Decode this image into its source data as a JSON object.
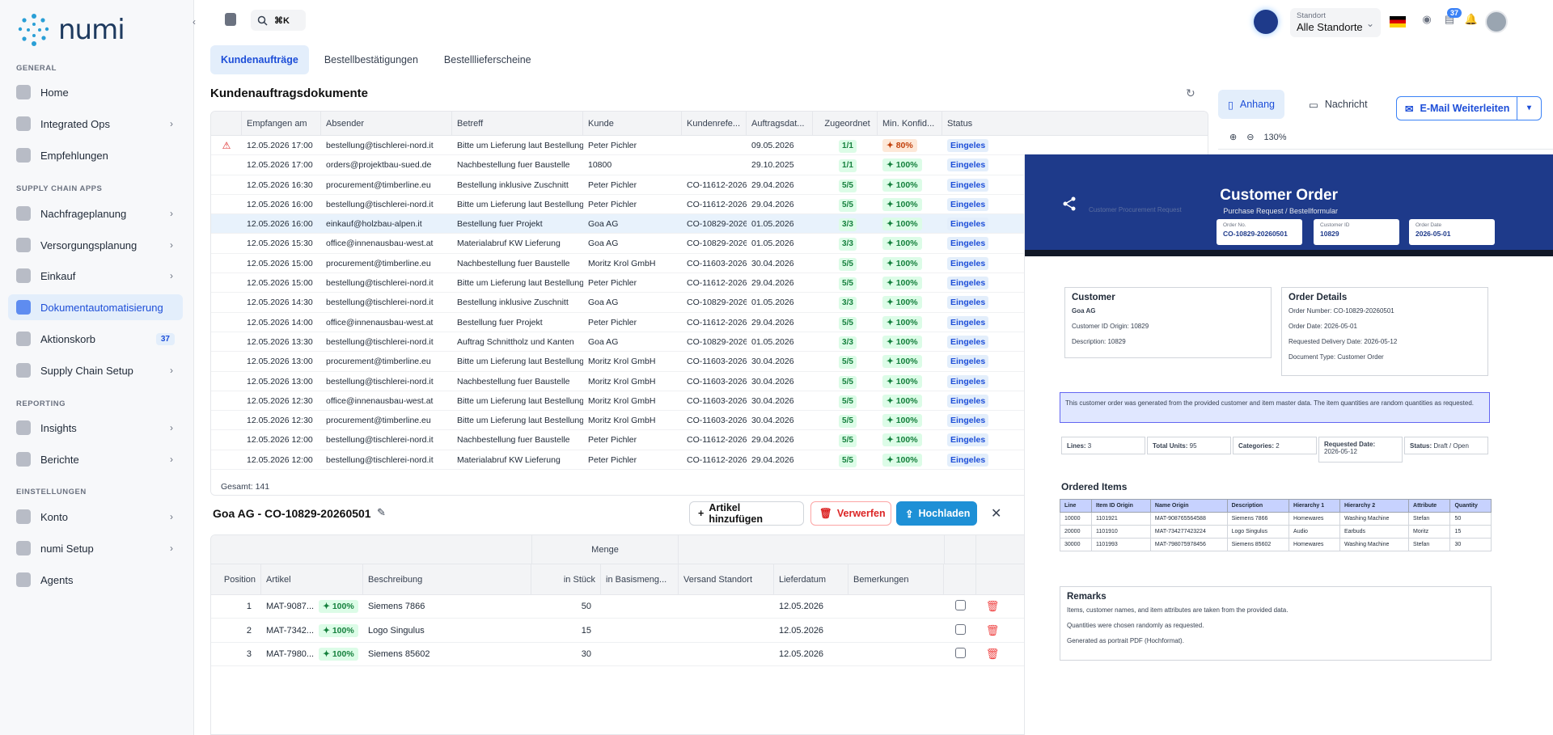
{
  "brand": {
    "name": "numi"
  },
  "sidebar": {
    "sections": {
      "general": "GENERAL",
      "supply": "SUPPLY CHAIN APPS",
      "reporting": "REPORTING",
      "settings": "EINSTELLUNGEN"
    },
    "items": [
      {
        "label": "Home",
        "icon": "home-icon"
      },
      {
        "label": "Integrated Ops",
        "icon": "ops-icon"
      },
      {
        "label": "Empfehlungen",
        "icon": "sparkle-icon"
      },
      {
        "label": "Nachfrageplanung",
        "icon": "chart-icon"
      },
      {
        "label": "Versorgungsplanung",
        "icon": "truck-icon"
      },
      {
        "label": "Einkauf",
        "icon": "dollar-icon"
      },
      {
        "label": "Dokumentautomatisierung",
        "icon": "document-icon"
      },
      {
        "label": "Aktionskorb",
        "icon": "basket-icon",
        "count": "37"
      },
      {
        "label": "Supply Chain Setup",
        "icon": "globe-icon"
      },
      {
        "label": "Insights",
        "icon": "insights-icon"
      },
      {
        "label": "Berichte",
        "icon": "reports-icon"
      },
      {
        "label": "Konto",
        "icon": "user-icon"
      },
      {
        "label": "numi Setup",
        "icon": "gear-icon"
      },
      {
        "label": "Agents",
        "icon": "terminal-icon"
      }
    ]
  },
  "topbar": {
    "shortcut": "⌘K",
    "standort_label": "Standort",
    "standort_value": "Alle Standorte",
    "notification_count": "37"
  },
  "tabs": [
    "Kundenaufträge",
    "Bestellbestätigungen",
    "Bestelllieferscheine"
  ],
  "section_title": "Kundenauftragsdokumente",
  "table": {
    "columns": [
      "Empfangen am",
      "Absender",
      "Betreff",
      "Kunde",
      "Kundenrefe...",
      "Auftragsdat...",
      "Zugeordnet",
      "Min. Konfid...",
      "Status"
    ],
    "rows": [
      {
        "warn": "⚠",
        "date": "12.05.2026 17:00",
        "from": "bestellung@tischlerei-nord.it",
        "subject": "Bitte um Lieferung laut Bestellung",
        "customer": "Peter Pichler",
        "ref": "",
        "odate": "09.05.2026",
        "assigned": "1/1",
        "conf": "80%",
        "status": "Eingeles"
      },
      {
        "warn": "",
        "date": "12.05.2026 17:00",
        "from": "orders@projektbau-sued.de",
        "subject": "Nachbestellung fuer Baustelle",
        "customer": "10800",
        "ref": "",
        "odate": "29.10.2025",
        "assigned": "1/1",
        "conf": "100%",
        "status": "Eingeles"
      },
      {
        "warn": "",
        "date": "12.05.2026 16:30",
        "from": "procurement@timberline.eu",
        "subject": "Bestellung inklusive Zuschnitt",
        "customer": "Peter Pichler",
        "ref": "CO-11612-2026",
        "odate": "29.04.2026",
        "assigned": "5/5",
        "conf": "100%",
        "status": "Eingeles"
      },
      {
        "warn": "",
        "date": "12.05.2026 16:00",
        "from": "bestellung@tischlerei-nord.it",
        "subject": "Bitte um Lieferung laut Bestellung",
        "customer": "Peter Pichler",
        "ref": "CO-11612-2026",
        "odate": "29.04.2026",
        "assigned": "5/5",
        "conf": "100%",
        "status": "Eingeles"
      },
      {
        "warn": "",
        "date": "12.05.2026 16:00",
        "from": "einkauf@holzbau-alpen.it",
        "subject": "Bestellung fuer Projekt",
        "customer": "Goa AG",
        "ref": "CO-10829-2026",
        "odate": "01.05.2026",
        "assigned": "3/3",
        "conf": "100%",
        "status": "Eingeles",
        "sel": true
      },
      {
        "warn": "",
        "date": "12.05.2026 15:30",
        "from": "office@innenausbau-west.at",
        "subject": "Materialabruf KW Lieferung",
        "customer": "Goa AG",
        "ref": "CO-10829-2026",
        "odate": "01.05.2026",
        "assigned": "3/3",
        "conf": "100%",
        "status": "Eingeles"
      },
      {
        "warn": "",
        "date": "12.05.2026 15:00",
        "from": "procurement@timberline.eu",
        "subject": "Nachbestellung fuer Baustelle",
        "customer": "Moritz Krol GmbH",
        "ref": "CO-11603-2026",
        "odate": "30.04.2026",
        "assigned": "5/5",
        "conf": "100%",
        "status": "Eingeles"
      },
      {
        "warn": "",
        "date": "12.05.2026 15:00",
        "from": "bestellung@tischlerei-nord.it",
        "subject": "Bitte um Lieferung laut Bestellung",
        "customer": "Peter Pichler",
        "ref": "CO-11612-2026",
        "odate": "29.04.2026",
        "assigned": "5/5",
        "conf": "100%",
        "status": "Eingeles"
      },
      {
        "warn": "",
        "date": "12.05.2026 14:30",
        "from": "bestellung@tischlerei-nord.it",
        "subject": "Bestellung inklusive Zuschnitt",
        "customer": "Goa AG",
        "ref": "CO-10829-2026",
        "odate": "01.05.2026",
        "assigned": "3/3",
        "conf": "100%",
        "status": "Eingeles"
      },
      {
        "warn": "",
        "date": "12.05.2026 14:00",
        "from": "office@innenausbau-west.at",
        "subject": "Bestellung fuer Projekt",
        "customer": "Peter Pichler",
        "ref": "CO-11612-2026",
        "odate": "29.04.2026",
        "assigned": "5/5",
        "conf": "100%",
        "status": "Eingeles"
      },
      {
        "warn": "",
        "date": "12.05.2026 13:30",
        "from": "bestellung@tischlerei-nord.it",
        "subject": "Auftrag Schnittholz und Kanten",
        "customer": "Goa AG",
        "ref": "CO-10829-2026",
        "odate": "01.05.2026",
        "assigned": "3/3",
        "conf": "100%",
        "status": "Eingeles"
      },
      {
        "warn": "",
        "date": "12.05.2026 13:00",
        "from": "procurement@timberline.eu",
        "subject": "Bitte um Lieferung laut Bestellung",
        "customer": "Moritz Krol GmbH",
        "ref": "CO-11603-2026",
        "odate": "30.04.2026",
        "assigned": "5/5",
        "conf": "100%",
        "status": "Eingeles"
      },
      {
        "warn": "",
        "date": "12.05.2026 13:00",
        "from": "bestellung@tischlerei-nord.it",
        "subject": "Nachbestellung fuer Baustelle",
        "customer": "Moritz Krol GmbH",
        "ref": "CO-11603-2026",
        "odate": "30.04.2026",
        "assigned": "5/5",
        "conf": "100%",
        "status": "Eingeles"
      },
      {
        "warn": "",
        "date": "12.05.2026 12:30",
        "from": "office@innenausbau-west.at",
        "subject": "Bitte um Lieferung laut Bestellung",
        "customer": "Moritz Krol GmbH",
        "ref": "CO-11603-2026",
        "odate": "30.04.2026",
        "assigned": "5/5",
        "conf": "100%",
        "status": "Eingeles"
      },
      {
        "warn": "",
        "date": "12.05.2026 12:30",
        "from": "procurement@timberline.eu",
        "subject": "Bitte um Lieferung laut Bestellung",
        "customer": "Moritz Krol GmbH",
        "ref": "CO-11603-2026",
        "odate": "30.04.2026",
        "assigned": "5/5",
        "conf": "100%",
        "status": "Eingeles"
      },
      {
        "warn": "",
        "date": "12.05.2026 12:00",
        "from": "bestellung@tischlerei-nord.it",
        "subject": "Nachbestellung fuer Baustelle",
        "customer": "Peter Pichler",
        "ref": "CO-11612-2026",
        "odate": "29.04.2026",
        "assigned": "5/5",
        "conf": "100%",
        "status": "Eingeles"
      },
      {
        "warn": "",
        "date": "12.05.2026 12:00",
        "from": "bestellung@tischlerei-nord.it",
        "subject": "Materialabruf KW Lieferung",
        "customer": "Peter Pichler",
        "ref": "CO-11612-2026",
        "odate": "29.04.2026",
        "assigned": "5/5",
        "conf": "100%",
        "status": "Eingeles"
      }
    ],
    "total": "Gesamt: 141"
  },
  "order": {
    "title": "Goa AG - CO-10829-20260501",
    "add_label": "Artikel hinzufügen",
    "discard_label": "Verwerfen",
    "upload_label": "Hochladen",
    "group_header": "Menge",
    "columns": [
      "Position",
      "Artikel",
      "Beschreibung",
      "in Stück",
      "in Basismeng...",
      "Versand Standort",
      "Lieferdatum",
      "Bemerkungen"
    ],
    "rows": [
      {
        "pos": "1",
        "article": "MAT-9087...",
        "conf": "100%",
        "desc": "Siemens 7866",
        "qty": "50",
        "date": "12.05.2026"
      },
      {
        "pos": "2",
        "article": "MAT-7342...",
        "conf": "100%",
        "desc": "Logo Singulus",
        "qty": "15",
        "date": "12.05.2026"
      },
      {
        "pos": "3",
        "article": "MAT-7980...",
        "conf": "100%",
        "desc": "Siemens 85602",
        "qty": "30",
        "date": "12.05.2026"
      }
    ]
  },
  "preview": {
    "tab_attachment": "Anhang",
    "tab_message": "Nachricht",
    "email_label": "E-Mail Weiterleiten",
    "zoom": "130%",
    "doc": {
      "title": "Customer Order",
      "subtitle": "Purchase Request / Bestellformular",
      "faint": "Customer Procurement Request",
      "order_no_label": "Order No.",
      "order_no": "CO-10829-20260501",
      "cust_id_label": "Customer ID",
      "cust_id": "10829",
      "order_date_label": "Order Date",
      "order_date": "2026-05-01",
      "customer_h": "Customer",
      "customer_name": "Goa AG",
      "customer_origin": "Customer ID Origin: 10829",
      "customer_desc": "Description: 10829",
      "details_h": "Order Details",
      "d1": "Order Number: CO-10829-20260501",
      "d2": "Order Date: 2026-05-01",
      "d3": "Requested Delivery Date: 2026-05-12",
      "d4": "Document Type: Customer Order",
      "note": "This customer order was generated from the provided customer and item master data. The item quantities are random quantities as requested.",
      "s_lines_k": "Lines:",
      "s_lines_v": "3",
      "s_units_k": "Total Units:",
      "s_units_v": "95",
      "s_cat_k": "Categories:",
      "s_cat_v": "2",
      "s_req_k": "Requested Date:",
      "s_req_v": "2026-05-12",
      "s_status_k": "Status:",
      "s_status_v": "Draft / Open",
      "items_h": "Ordered Items",
      "item_cols": [
        "Line",
        "Item ID Origin",
        "Name Origin",
        "Description",
        "Hierarchy 1",
        "Hierarchy 2",
        "Attribute",
        "Quantity"
      ],
      "items": [
        [
          "10000",
          "1101921",
          "MAT-908765564588",
          "Siemens 7866",
          "Homewares",
          "Washing Machine",
          "Stefan",
          "50"
        ],
        [
          "20000",
          "1101910",
          "MAT-734277423224",
          "Logo Singulus",
          "Audio",
          "Earbuds",
          "Moritz",
          "15"
        ],
        [
          "30000",
          "1101993",
          "MAT-798075978456",
          "Siemens 85602",
          "Homewares",
          "Washing Machine",
          "Stefan",
          "30"
        ]
      ],
      "remarks_h": "Remarks",
      "r1": "Items, customer names, and item attributes are taken from the provided data.",
      "r2": "Quantities were chosen randomly as requested.",
      "r3": "Generated as portrait PDF (Hochformat)."
    }
  }
}
